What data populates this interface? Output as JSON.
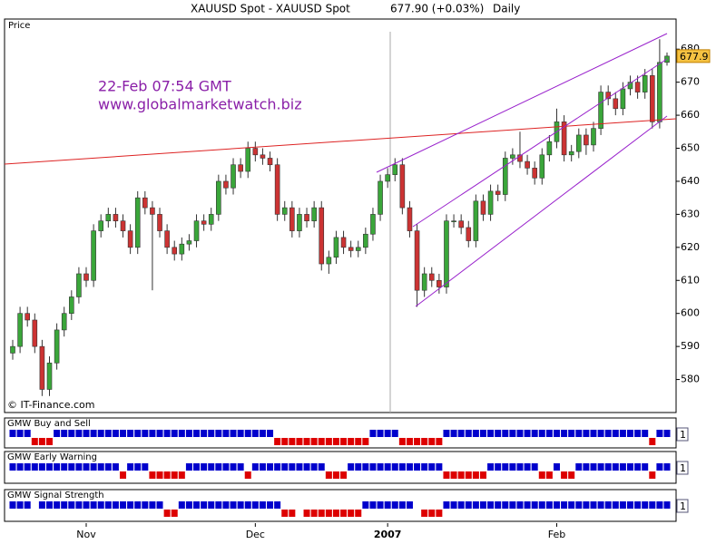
{
  "chart_data": {
    "type": "candlestick",
    "title": "XAUUSD Spot - XAUUSD Spot",
    "price_text": "677.90 (+0.03%)",
    "period": "Daily",
    "panel_label": "Price",
    "annotations": [
      "22-Feb 07:54 GMT",
      "www.globalmarketwatch.biz"
    ],
    "copyright": "© IT-Finance.com",
    "last_price": 677.9,
    "up_color": "#3aa63a",
    "down_color": "#cc3333",
    "ylim": [
      570,
      685
    ],
    "yticks": [
      580,
      590,
      600,
      610,
      620,
      630,
      640,
      650,
      660,
      670,
      680
    ],
    "xticks": [
      {
        "value": 10,
        "label": "Nov"
      },
      {
        "value": 33,
        "label": "Dec"
      },
      {
        "value": 51,
        "label": "2007"
      },
      {
        "value": 74,
        "label": "Feb"
      }
    ],
    "open": [
      588,
      590,
      600,
      598,
      590,
      577,
      585,
      595,
      600,
      605,
      612,
      610,
      625,
      628,
      630,
      628,
      625,
      620,
      635,
      632,
      630,
      625,
      620,
      618,
      621,
      622,
      628,
      627,
      630,
      640,
      638,
      645,
      643,
      650,
      648,
      647,
      645,
      630,
      632,
      625,
      630,
      628,
      632,
      615,
      617,
      623,
      620,
      619,
      620,
      624,
      630,
      640,
      642,
      645,
      632,
      625,
      607,
      612,
      610,
      608,
      628,
      628,
      626,
      622,
      634,
      630,
      637,
      636,
      647,
      648,
      646,
      644,
      641,
      648,
      652,
      658,
      648,
      649,
      654,
      651,
      656,
      667,
      665,
      662,
      668,
      670,
      667,
      672,
      658,
      676
    ],
    "high": [
      592,
      602,
      602,
      600,
      592,
      587,
      597,
      602,
      607,
      614,
      614,
      627,
      630,
      632,
      632,
      630,
      627,
      637,
      637,
      634,
      632,
      627,
      622,
      623,
      624,
      630,
      630,
      632,
      642,
      642,
      647,
      647,
      652,
      652,
      650,
      649,
      647,
      634,
      634,
      632,
      632,
      634,
      634,
      619,
      625,
      625,
      622,
      622,
      626,
      632,
      642,
      644,
      647,
      647,
      634,
      627,
      614,
      614,
      612,
      630,
      630,
      630,
      628,
      636,
      636,
      639,
      639,
      649,
      650,
      655,
      648,
      646,
      650,
      654,
      662,
      660,
      651,
      656,
      656,
      658,
      669,
      669,
      667,
      670,
      672,
      672,
      674,
      674,
      683,
      679
    ],
    "low": [
      586,
      588,
      596,
      588,
      575,
      575,
      583,
      593,
      598,
      603,
      608,
      608,
      623,
      626,
      626,
      623,
      618,
      618,
      630,
      607,
      623,
      618,
      616,
      616,
      619,
      620,
      625,
      625,
      628,
      636,
      636,
      641,
      641,
      646,
      645,
      643,
      628,
      628,
      623,
      623,
      626,
      626,
      613,
      612,
      615,
      618,
      617,
      617,
      618,
      622,
      628,
      638,
      640,
      630,
      623,
      602,
      605,
      608,
      606,
      606,
      626,
      624,
      620,
      620,
      628,
      628,
      634,
      634,
      645,
      644,
      642,
      639,
      639,
      646,
      650,
      646,
      646,
      647,
      648,
      649,
      654,
      663,
      660,
      660,
      666,
      665,
      665,
      656,
      656,
      675
    ],
    "close": [
      590,
      600,
      598,
      590,
      577,
      585,
      595,
      600,
      605,
      612,
      610,
      625,
      628,
      630,
      628,
      625,
      620,
      635,
      632,
      630,
      625,
      620,
      618,
      621,
      622,
      628,
      627,
      630,
      640,
      638,
      645,
      643,
      650,
      648,
      647,
      645,
      630,
      632,
      625,
      630,
      628,
      632,
      615,
      617,
      623,
      620,
      619,
      620,
      624,
      630,
      640,
      642,
      645,
      632,
      625,
      607,
      612,
      610,
      608,
      628,
      628,
      626,
      622,
      634,
      630,
      637,
      636,
      647,
      648,
      646,
      644,
      641,
      648,
      652,
      658,
      648,
      649,
      654,
      651,
      656,
      667,
      665,
      662,
      668,
      670,
      667,
      672,
      658,
      676,
      677.9
    ],
    "buy_color": "#0000cc",
    "sell_color": "#dd0000",
    "indicators": [
      {
        "name": "GMW Buy and Sell",
        "level": 1,
        "values": [
          1,
          1,
          1,
          -1,
          -1,
          -1,
          1,
          1,
          1,
          1,
          1,
          1,
          1,
          1,
          1,
          1,
          1,
          1,
          1,
          1,
          1,
          1,
          1,
          1,
          1,
          1,
          1,
          1,
          1,
          1,
          1,
          1,
          1,
          1,
          1,
          1,
          -1,
          -1,
          -1,
          -1,
          -1,
          -1,
          -1,
          -1,
          -1,
          -1,
          -1,
          -1,
          -1,
          1,
          1,
          1,
          1,
          -1,
          -1,
          -1,
          -1,
          -1,
          -1,
          1,
          1,
          1,
          1,
          1,
          1,
          1,
          1,
          1,
          1,
          1,
          1,
          1,
          1,
          1,
          1,
          1,
          1,
          1,
          1,
          1,
          1,
          1,
          1,
          1,
          1,
          1,
          1,
          -1,
          1,
          1
        ]
      },
      {
        "name": "GMW Early Warning",
        "level": 1,
        "values": [
          1,
          1,
          1,
          1,
          1,
          1,
          1,
          1,
          1,
          1,
          1,
          1,
          1,
          1,
          1,
          -1,
          1,
          1,
          1,
          -1,
          -1,
          -1,
          -1,
          -1,
          1,
          1,
          1,
          1,
          1,
          1,
          1,
          1,
          -1,
          1,
          1,
          1,
          1,
          1,
          1,
          1,
          1,
          1,
          1,
          -1,
          -1,
          -1,
          1,
          1,
          1,
          1,
          1,
          1,
          1,
          1,
          1,
          1,
          1,
          1,
          1,
          -1,
          -1,
          -1,
          -1,
          -1,
          -1,
          1,
          1,
          1,
          1,
          1,
          1,
          1,
          -1,
          -1,
          1,
          -1,
          -1,
          1,
          1,
          1,
          1,
          1,
          1,
          1,
          1,
          1,
          1,
          -1,
          1,
          1
        ]
      },
      {
        "name": "GMW Signal Strength",
        "level": 1,
        "values": [
          1,
          1,
          1,
          0,
          1,
          1,
          1,
          1,
          1,
          1,
          1,
          1,
          1,
          1,
          1,
          1,
          1,
          1,
          1,
          1,
          1,
          -1,
          -1,
          1,
          1,
          1,
          1,
          1,
          1,
          1,
          1,
          1,
          1,
          1,
          1,
          1,
          1,
          -1,
          -1,
          0,
          -1,
          -1,
          -1,
          -1,
          -1,
          -1,
          -1,
          -1,
          1,
          1,
          1,
          1,
          1,
          1,
          1,
          0,
          -1,
          -1,
          -1,
          1,
          1,
          1,
          1,
          1,
          1,
          1,
          1,
          1,
          1,
          1,
          1,
          1,
          1,
          1,
          1,
          1,
          1,
          1,
          1,
          1,
          1,
          1,
          1,
          1,
          1,
          1,
          1,
          1,
          1,
          1
        ]
      }
    ]
  }
}
